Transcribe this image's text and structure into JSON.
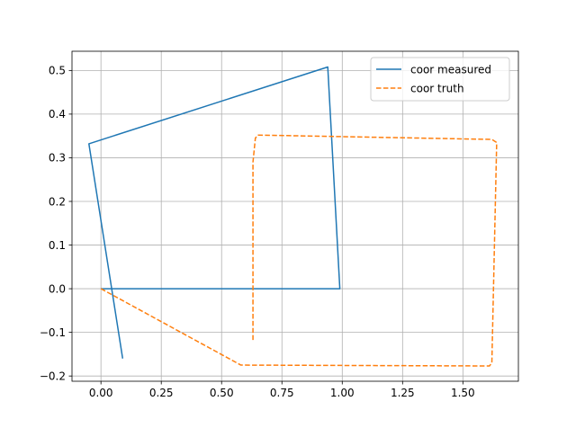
{
  "chart_data": {
    "type": "line",
    "title": "",
    "xlabel": "",
    "ylabel": "",
    "xlim": [
      -0.12,
      1.73
    ],
    "ylim": [
      -0.212,
      0.544
    ],
    "xticks": [
      0.0,
      0.25,
      0.5,
      0.75,
      1.0,
      1.25,
      1.5
    ],
    "xtick_labels": [
      "0.00",
      "0.25",
      "0.50",
      "0.75",
      "1.00",
      "1.25",
      "1.50"
    ],
    "yticks": [
      -0.2,
      -0.1,
      0.0,
      0.1,
      0.2,
      0.3,
      0.4,
      0.5
    ],
    "ytick_labels": [
      "−0.2",
      "−0.1",
      "0.0",
      "0.1",
      "0.2",
      "0.3",
      "0.4",
      "0.5"
    ],
    "grid": true,
    "legend": "top-right",
    "series": [
      {
        "name": "coor measured",
        "color": "#1f77b4",
        "style": "solid",
        "points": [
          [
            0.0,
            0.0
          ],
          [
            0.99,
            0.0
          ],
          [
            0.94,
            0.508
          ],
          [
            -0.05,
            0.332
          ],
          [
            0.09,
            -0.16
          ]
        ]
      },
      {
        "name": "coor truth",
        "color": "#ff7f0e",
        "style": "dashed",
        "points": [
          [
            0.0,
            0.0
          ],
          [
            0.58,
            -0.175
          ],
          [
            1.61,
            -0.177
          ],
          [
            1.62,
            -0.17
          ],
          [
            1.64,
            0.335
          ],
          [
            1.62,
            0.342
          ],
          [
            0.65,
            0.352
          ],
          [
            0.64,
            0.345
          ],
          [
            0.63,
            0.29
          ],
          [
            0.63,
            -0.12
          ]
        ]
      }
    ]
  }
}
